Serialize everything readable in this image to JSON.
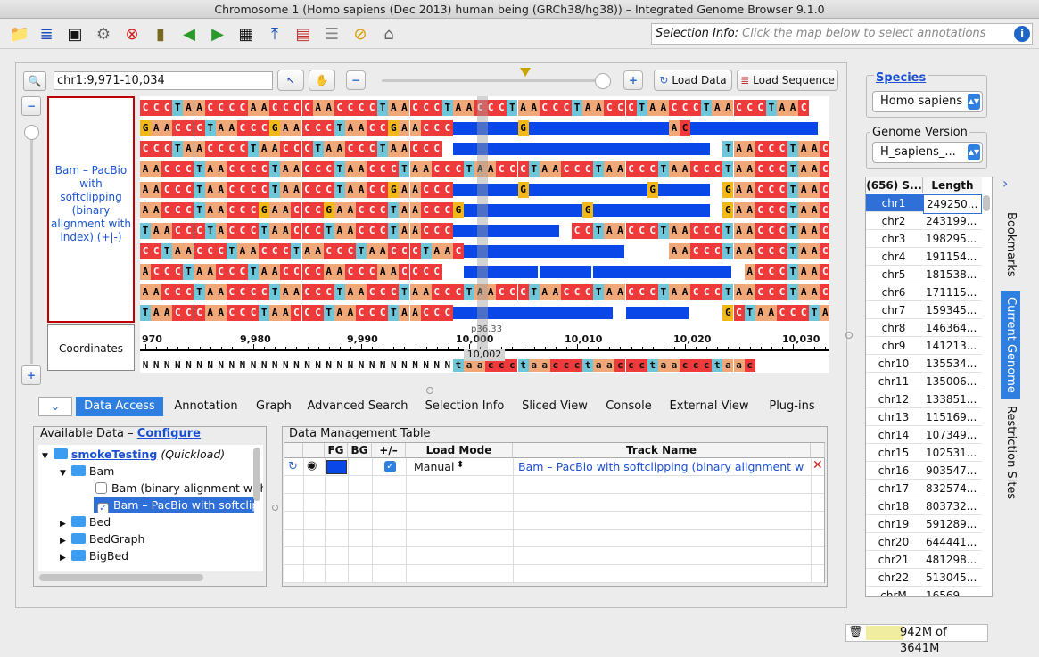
{
  "window": {
    "title": "Chromosome 1  (Homo sapiens (Dec 2013) human being (GRCh38/hg38)) – Integrated Genome Browser 9.1.0"
  },
  "selection_info": {
    "label": "Selection Info:",
    "placeholder": "Click the map below to select annotations"
  },
  "nav": {
    "location": "chr1:9,971-10,034",
    "load_data": "Load Data",
    "load_sequence": "Load Sequence"
  },
  "track": {
    "label": "Bam – PacBio with softclipping (binary alignment with index) (+|-)",
    "coord_label": "Coordinates"
  },
  "ruler": {
    "ticks": [
      "970",
      "9,980",
      "9,990",
      "10,000",
      "10,010",
      "10,020",
      "10,030"
    ],
    "band": "p36.33",
    "cursor": "10,002"
  },
  "reference_row": "NNNNNNNNNNNNNNNNNNNNNNNNNNNNNtaaccctaaccctaaccctaaccctaac",
  "reads": [
    {
      "bases": "CCCTAACCCCAACCCCAACCCCTAACCCTAACCCTAACCCTAACCCTAACCCTAACCCTAAC",
      "bars": [],
      "inserts": []
    },
    {
      "bases": "GAACCCTAACCCGAACCCTAACCGAACCC",
      "bars": [
        [
          29,
          63
        ]
      ],
      "inserts": [
        [
          35,
          "G"
        ],
        [
          49,
          "A"
        ],
        [
          50,
          "C"
        ]
      ]
    },
    {
      "bases": "CCCTAACCCCTAACCCTAACCCTAACCC",
      "bars": [
        [
          29,
          53
        ]
      ],
      "tail": "TAACCCTAAC"
    },
    {
      "bases": "AACCCTAACCCCTAACCCTAACCCTAACCCTAACCCTAACCCTAACCCTAACCCTAACCCTAAC",
      "bars": [],
      "inserts": []
    },
    {
      "bases": "AACCCTAACCCCTAACCCTAACCGAACCC",
      "bars": [
        [
          29,
          53
        ]
      ],
      "inserts": [
        [
          35,
          "G"
        ],
        [
          47,
          "G"
        ]
      ],
      "tail": "GAACCCTAAC"
    },
    {
      "bases": "AACCCTAACCCGAACCCGAACCCTAACCCG",
      "bars": [
        [
          30,
          53
        ]
      ],
      "inserts": [
        [
          41,
          "G"
        ]
      ],
      "tail": "GAACCCTAAC"
    },
    {
      "bases": "TAACCCTACCCTAACCCTAACCCTAACCC",
      "bars": [
        [
          29,
          39
        ]
      ],
      "tail2": "CCTAACCCTAACCCTAACCCTAAC"
    },
    {
      "bases": "CCTAACCCTAACCCTAACCCTAACCCTAAC",
      "bars": [
        [
          30,
          45
        ]
      ],
      "tail3": "AACCCTAACCCTAAC"
    },
    {
      "bases": "ACCCTAACCCTAACCCCAACCCAACCCC",
      "bars": [
        [
          30,
          37
        ],
        [
          37,
          42
        ],
        [
          42,
          55
        ]
      ],
      "tail4": "ACCCTAAC"
    },
    {
      "bases": "AACCCTAACCCCTAACCCTAACCCTAACCCTAACCCTAACCCTAACCCTAACCCTAACCCTAAC",
      "bars": [],
      "inserts": []
    },
    {
      "bases": "TAACCCAACCCTAACCCTAACCCTAACCC",
      "bars": [
        [
          29,
          44
        ],
        [
          45,
          51
        ]
      ],
      "tail": "GCTAACCCTAAC"
    }
  ],
  "tabs": [
    "Data Access",
    "Annotation",
    "Graph",
    "Advanced Search",
    "Selection Info",
    "Sliced View",
    "Console",
    "External View",
    "Plug-ins"
  ],
  "available_data": {
    "title": "Available Data – ",
    "configure": "Configure",
    "tree": [
      {
        "label": "smokeTesting",
        "suffix": "(Quickload)"
      },
      {
        "label": "Bam"
      },
      {
        "label": "Bam (binary alignment with"
      },
      {
        "label": "Bam – PacBio with softclipp"
      },
      {
        "label": "Bed"
      },
      {
        "label": "BedGraph"
      },
      {
        "label": "BigBed"
      }
    ]
  },
  "dmt": {
    "title": "Data Management Table",
    "headers": [
      "FG",
      "BG",
      "+/–",
      "Load Mode",
      "Track Name"
    ],
    "row": {
      "load_mode": "Manual",
      "track_name": "Bam – PacBio with softclipping (binary alignment w"
    }
  },
  "species": {
    "label": "Species",
    "value": "Homo sapiens"
  },
  "genome_version": {
    "label": "Genome Version",
    "value": "H_sapiens_..."
  },
  "chr_table": {
    "headers": [
      "(656) S...",
      "Length"
    ],
    "rows": [
      [
        "chr1",
        "249250..."
      ],
      [
        "chr2",
        "243199..."
      ],
      [
        "chr3",
        "198295..."
      ],
      [
        "chr4",
        "191154..."
      ],
      [
        "chr5",
        "181538..."
      ],
      [
        "chr6",
        "171115..."
      ],
      [
        "chr7",
        "159345..."
      ],
      [
        "chr8",
        "146364..."
      ],
      [
        "chr9",
        "141213..."
      ],
      [
        "chr10",
        "135534..."
      ],
      [
        "chr11",
        "135006..."
      ],
      [
        "chr12",
        "133851..."
      ],
      [
        "chr13",
        "115169..."
      ],
      [
        "chr14",
        "107349..."
      ],
      [
        "chr15",
        "102531..."
      ],
      [
        "chr16",
        "903547..."
      ],
      [
        "chr17",
        "832574..."
      ],
      [
        "chr18",
        "803732..."
      ],
      [
        "chr19",
        "591289..."
      ],
      [
        "chr20",
        "644441..."
      ],
      [
        "chr21",
        "481298..."
      ],
      [
        "chr22",
        "513045..."
      ],
      [
        "chrM",
        "16569"
      ]
    ]
  },
  "side_tabs": [
    "Bookmarks",
    "Current Genome",
    "Restriction Sites"
  ],
  "memory": "942M of 3641M",
  "colors": {
    "A": "#f0a878",
    "C": "#ee3a3a",
    "T": "#6fc6d8",
    "G": "#f2b818",
    "bar": "#0a47e8",
    "accent": "#2f7fe0"
  }
}
